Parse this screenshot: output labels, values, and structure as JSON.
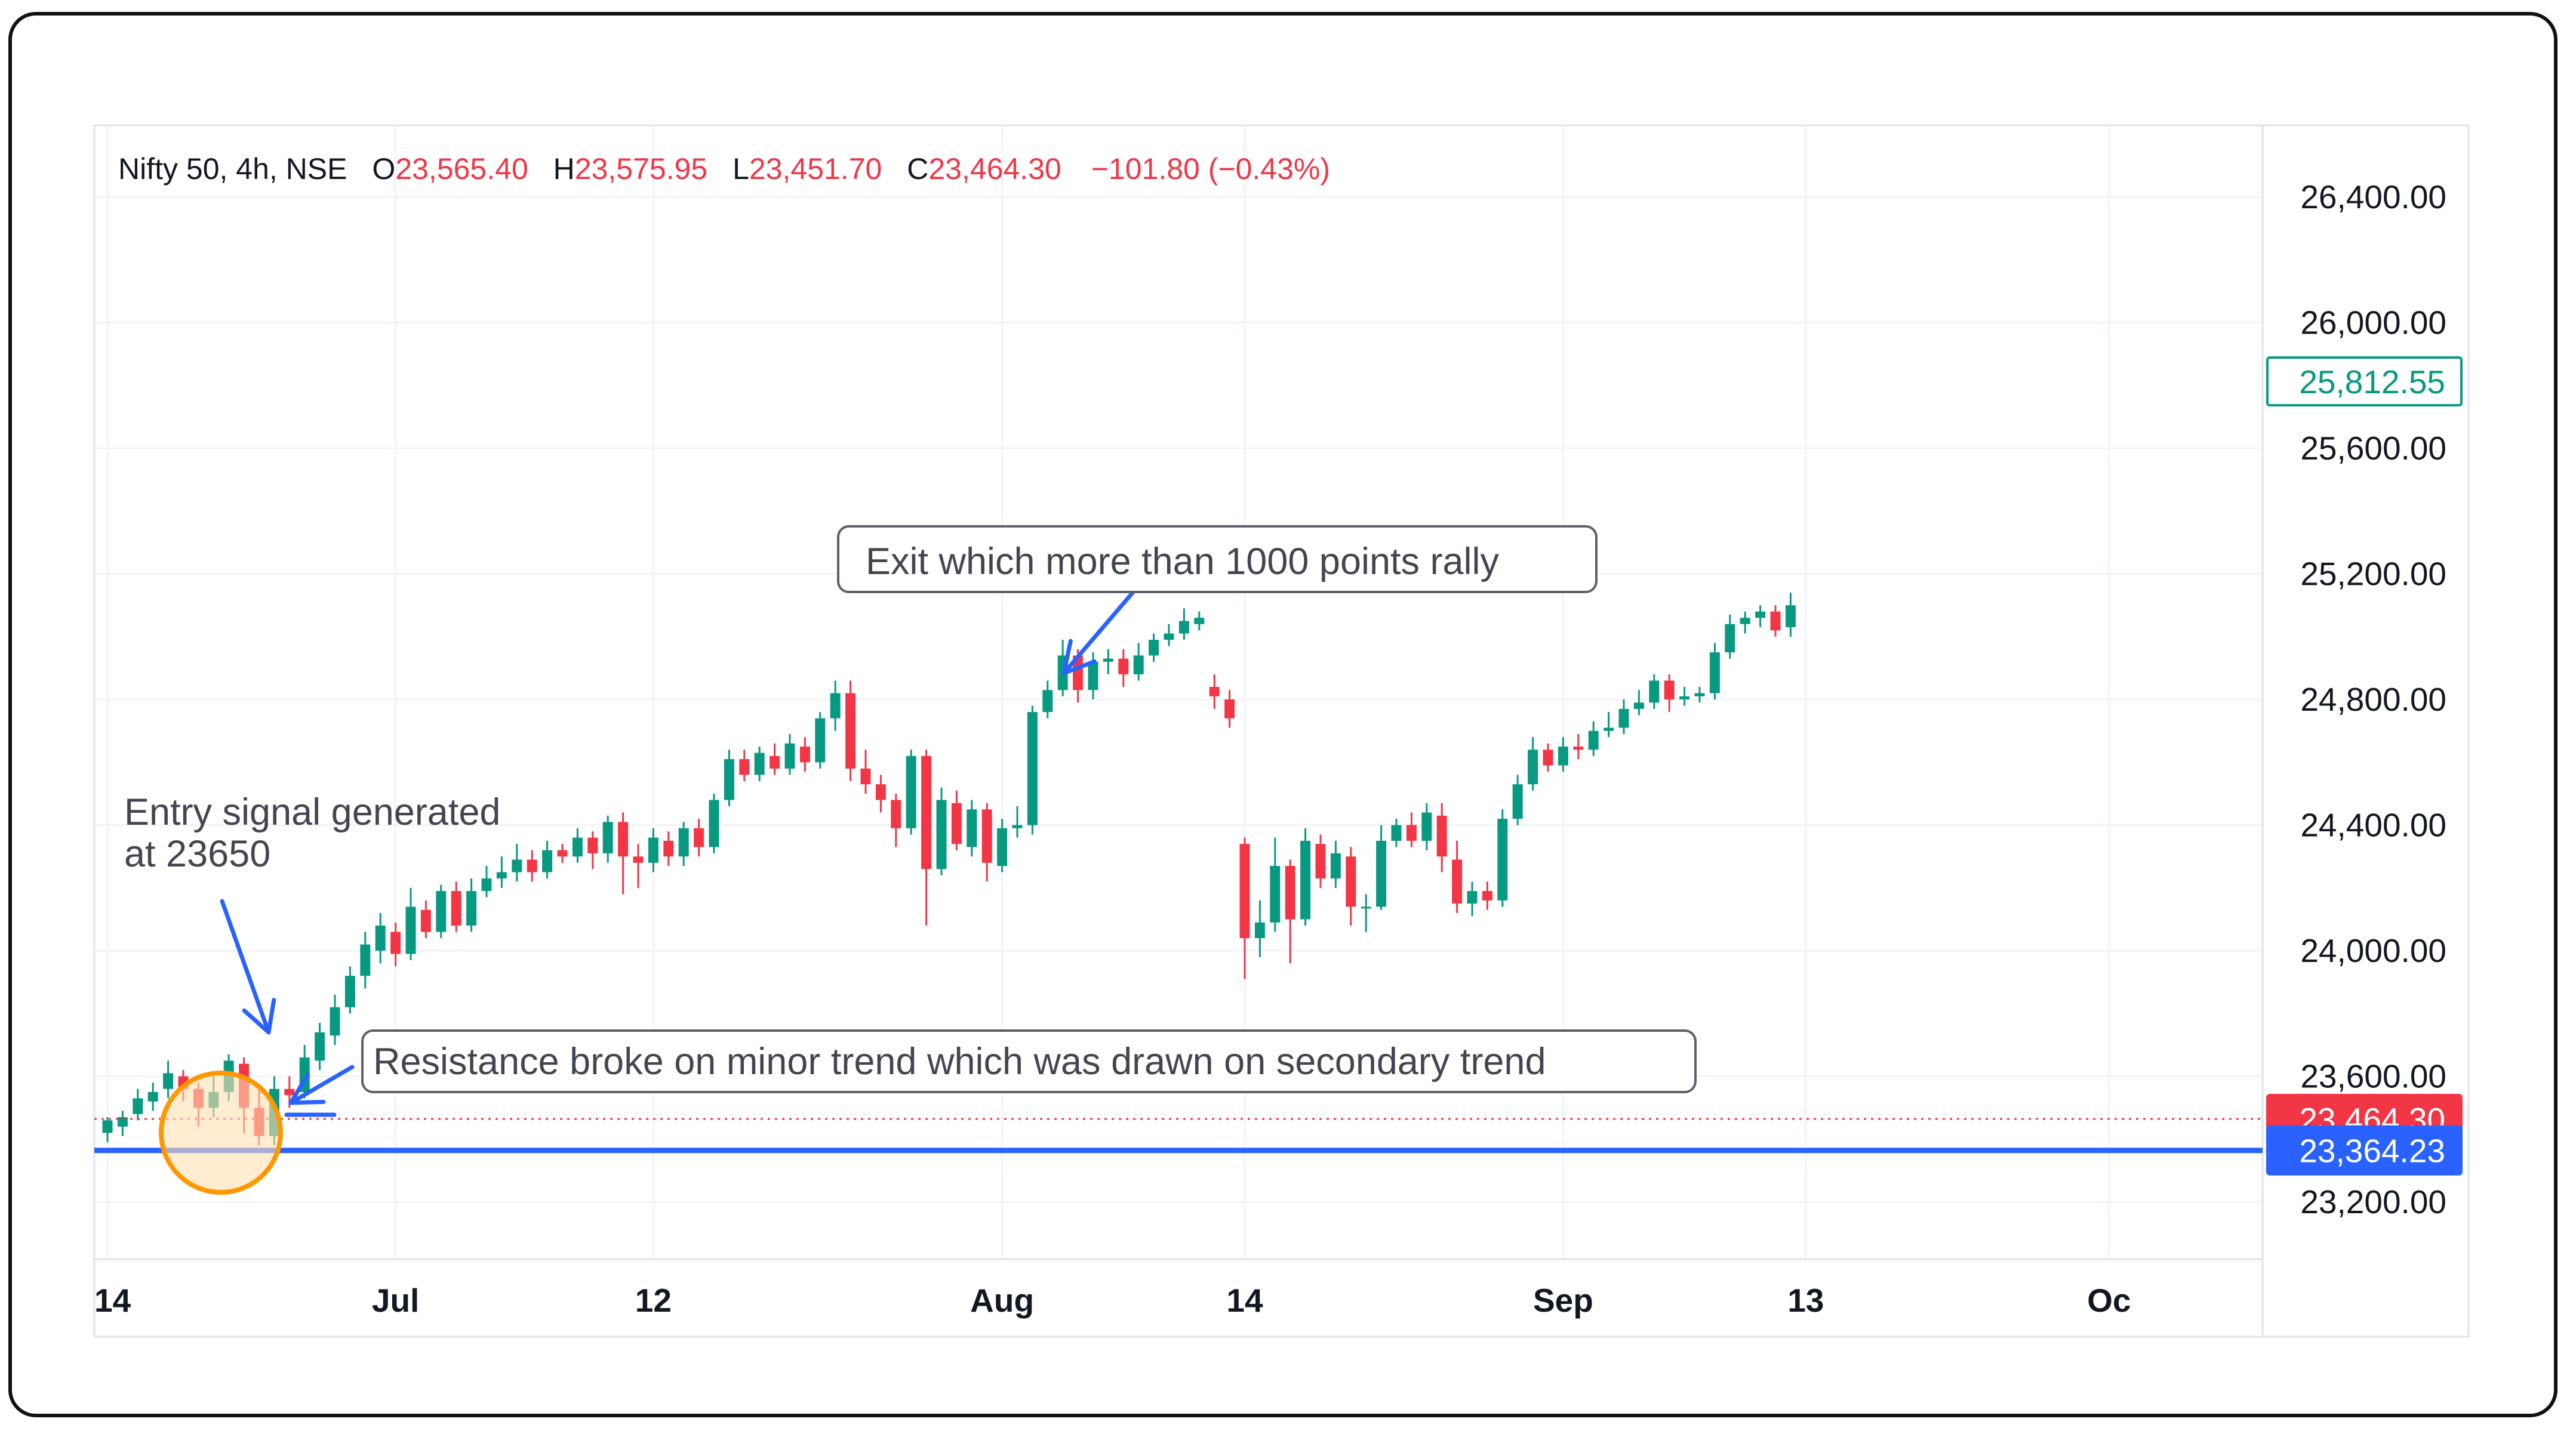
{
  "legend": {
    "symbol": "Nifty 50, 4h, NSE",
    "o_label": "O",
    "o_value": "23,565.40",
    "h_label": "H",
    "h_value": "23,575.95",
    "l_label": "L",
    "l_value": "23,451.70",
    "c_label": "C",
    "c_value": "23,464.30",
    "change": "−101.80 (−0.43%)"
  },
  "colors": {
    "up": "#089981",
    "down": "#f23645",
    "support_line": "#2962ff",
    "circle_stroke": "#ff9800",
    "circle_fill": "#ffe0b2",
    "arrow": "#2962ff",
    "grid": "#f0f3fa"
  },
  "annotations": {
    "entry_line1": "Entry signal generated",
    "entry_line2": "at 23650",
    "resistance": "Resistance broke on minor trend which was drawn on secondary trend",
    "exit": "Exit which more than 1000 points rally"
  },
  "price_labels": {
    "last": "25,812.55",
    "close": "23,464.30",
    "line": "23,364.23"
  },
  "chart_data": {
    "type": "candlestick",
    "ylim": [
      23100,
      26650
    ],
    "y_ticks": [
      "26,400.00",
      "26,000.00",
      "25,600.00",
      "25,200.00",
      "24,800.00",
      "24,400.00",
      "24,000.00",
      "23,600.00",
      "23,200.00"
    ],
    "y_tick_values": [
      26400,
      26000,
      25600,
      25200,
      24800,
      24400,
      24000,
      23600,
      23200
    ],
    "x_tick_labels": [
      "14",
      "Jul",
      "12",
      "Aug",
      "14",
      "Sep",
      "13",
      "Oc"
    ],
    "x_tick_index": [
      0,
      19,
      36,
      59,
      75,
      96,
      112,
      132
    ],
    "close_price": 23464.3,
    "support_level": 23364.23,
    "last_price": 25812.55,
    "candles": [
      [
        23420,
        23460,
        23390,
        23470
      ],
      [
        23440,
        23470,
        23410,
        23490
      ],
      [
        23480,
        23530,
        23460,
        23560
      ],
      [
        23520,
        23550,
        23490,
        23580
      ],
      [
        23560,
        23610,
        23530,
        23650
      ],
      [
        23600,
        23560,
        23520,
        23620
      ],
      [
        23560,
        23500,
        23440,
        23580
      ],
      [
        23500,
        23550,
        23470,
        23600
      ],
      [
        23550,
        23650,
        23520,
        23670
      ],
      [
        23640,
        23500,
        23420,
        23660
      ],
      [
        23500,
        23410,
        23380,
        23560
      ],
      [
        23410,
        23560,
        23380,
        23600
      ],
      [
        23560,
        23540,
        23500,
        23600
      ],
      [
        23550,
        23660,
        23530,
        23700
      ],
      [
        23650,
        23740,
        23620,
        23770
      ],
      [
        23730,
        23820,
        23700,
        23860
      ],
      [
        23820,
        23920,
        23800,
        23950
      ],
      [
        23920,
        24020,
        23880,
        24060
      ],
      [
        24000,
        24080,
        23960,
        24120
      ],
      [
        24060,
        23990,
        23950,
        24090
      ],
      [
        23990,
        24140,
        23970,
        24200
      ],
      [
        24130,
        24060,
        24040,
        24160
      ],
      [
        24060,
        24190,
        24040,
        24210
      ],
      [
        24190,
        24080,
        24060,
        24220
      ],
      [
        24080,
        24190,
        24060,
        24230
      ],
      [
        24190,
        24230,
        24170,
        24270
      ],
      [
        24230,
        24250,
        24200,
        24300
      ],
      [
        24250,
        24290,
        24220,
        24340
      ],
      [
        24290,
        24250,
        24220,
        24320
      ],
      [
        24250,
        24320,
        24230,
        24350
      ],
      [
        24320,
        24300,
        24280,
        24340
      ],
      [
        24300,
        24360,
        24280,
        24390
      ],
      [
        24360,
        24310,
        24260,
        24380
      ],
      [
        24310,
        24410,
        24280,
        24430
      ],
      [
        24410,
        24300,
        24180,
        24440
      ],
      [
        24300,
        24280,
        24200,
        24340
      ],
      [
        24280,
        24360,
        24250,
        24390
      ],
      [
        24350,
        24300,
        24270,
        24380
      ],
      [
        24300,
        24390,
        24270,
        24410
      ],
      [
        24390,
        24330,
        24300,
        24420
      ],
      [
        24330,
        24480,
        24310,
        24500
      ],
      [
        24480,
        24610,
        24460,
        24640
      ],
      [
        24610,
        24560,
        24540,
        24640
      ],
      [
        24560,
        24630,
        24540,
        24650
      ],
      [
        24620,
        24580,
        24560,
        24660
      ],
      [
        24580,
        24660,
        24560,
        24690
      ],
      [
        24650,
        24600,
        24570,
        24680
      ],
      [
        24600,
        24740,
        24580,
        24760
      ],
      [
        24740,
        24820,
        24700,
        24860
      ],
      [
        24820,
        24580,
        24540,
        24860
      ],
      [
        24580,
        24530,
        24500,
        24640
      ],
      [
        24530,
        24480,
        24440,
        24560
      ],
      [
        24480,
        24390,
        24330,
        24500
      ],
      [
        24390,
        24620,
        24370,
        24640
      ],
      [
        24620,
        24260,
        24080,
        24640
      ],
      [
        24260,
        24480,
        24240,
        24520
      ],
      [
        24470,
        24340,
        24320,
        24510
      ],
      [
        24330,
        24450,
        24300,
        24480
      ],
      [
        24450,
        24280,
        24220,
        24470
      ],
      [
        24270,
        24390,
        24250,
        24420
      ],
      [
        24390,
        24400,
        24360,
        24460
      ],
      [
        24400,
        24760,
        24370,
        24780
      ],
      [
        24760,
        24830,
        24740,
        24860
      ],
      [
        24830,
        24940,
        24810,
        24990
      ],
      [
        24940,
        24830,
        24790,
        24960
      ],
      [
        24830,
        24920,
        24800,
        24950
      ],
      [
        24920,
        24930,
        24880,
        24960
      ],
      [
        24930,
        24880,
        24840,
        24960
      ],
      [
        24880,
        24940,
        24860,
        24980
      ],
      [
        24940,
        24990,
        24920,
        25010
      ],
      [
        24990,
        25010,
        24970,
        25040
      ],
      [
        25010,
        25050,
        24990,
        25090
      ],
      [
        25040,
        25060,
        25020,
        25080
      ],
      [
        24840,
        24810,
        24770,
        24880
      ],
      [
        24800,
        24740,
        24710,
        24830
      ],
      [
        24340,
        24040,
        23910,
        24360
      ],
      [
        24040,
        24090,
        23980,
        24160
      ],
      [
        24090,
        24270,
        24060,
        24360
      ],
      [
        24270,
        24100,
        23960,
        24290
      ],
      [
        24100,
        24350,
        24080,
        24390
      ],
      [
        24340,
        24230,
        24200,
        24370
      ],
      [
        24230,
        24310,
        24200,
        24350
      ],
      [
        24300,
        24140,
        24080,
        24330
      ],
      [
        24140,
        24140,
        24060,
        24180
      ],
      [
        24140,
        24350,
        24130,
        24400
      ],
      [
        24350,
        24400,
        24330,
        24420
      ],
      [
        24400,
        24350,
        24330,
        24440
      ],
      [
        24350,
        24440,
        24320,
        24470
      ],
      [
        24430,
        24300,
        24250,
        24470
      ],
      [
        24290,
        24150,
        24120,
        24350
      ],
      [
        24150,
        24190,
        24110,
        24220
      ],
      [
        24190,
        24160,
        24130,
        24220
      ],
      [
        24160,
        24420,
        24140,
        24450
      ],
      [
        24420,
        24530,
        24400,
        24560
      ],
      [
        24530,
        24640,
        24510,
        24680
      ],
      [
        24640,
        24590,
        24570,
        24660
      ],
      [
        24590,
        24650,
        24570,
        24680
      ],
      [
        24650,
        24640,
        24610,
        24690
      ],
      [
        24640,
        24700,
        24620,
        24730
      ],
      [
        24700,
        24710,
        24680,
        24760
      ],
      [
        24710,
        24770,
        24690,
        24800
      ],
      [
        24770,
        24790,
        24750,
        24830
      ],
      [
        24790,
        24860,
        24770,
        24880
      ],
      [
        24860,
        24800,
        24760,
        24880
      ],
      [
        24800,
        24810,
        24780,
        24840
      ],
      [
        24810,
        24820,
        24790,
        24840
      ],
      [
        24820,
        24950,
        24800,
        24980
      ],
      [
        24950,
        25040,
        24930,
        25070
      ],
      [
        25040,
        25060,
        25010,
        25080
      ],
      [
        25060,
        25080,
        25030,
        25100
      ],
      [
        25080,
        25020,
        25000,
        25100
      ],
      [
        25030,
        25100,
        25000,
        25140
      ]
    ]
  }
}
